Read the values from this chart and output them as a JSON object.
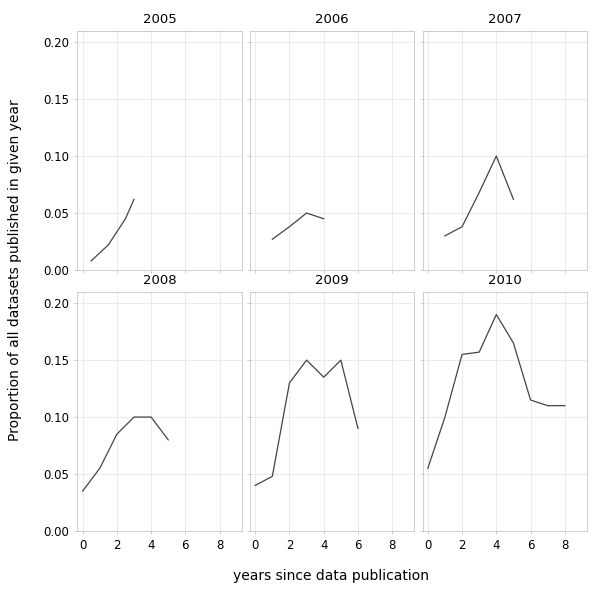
{
  "panels": [
    {
      "year": "2005",
      "x": [
        0.5,
        1.5,
        2.5,
        3.0
      ],
      "y": [
        0.008,
        0.022,
        0.045,
        0.062
      ]
    },
    {
      "year": "2006",
      "x": [
        1.0,
        2.0,
        3.0,
        4.0
      ],
      "y": [
        0.027,
        0.038,
        0.05,
        0.045
      ]
    },
    {
      "year": "2007",
      "x": [
        1.0,
        2.0,
        3.0,
        4.0,
        5.0
      ],
      "y": [
        0.03,
        0.038,
        0.068,
        0.1,
        0.062
      ]
    },
    {
      "year": "2008",
      "x": [
        0.0,
        1.0,
        2.0,
        3.0,
        4.0,
        5.0
      ],
      "y": [
        0.035,
        0.055,
        0.085,
        0.1,
        0.1,
        0.08
      ]
    },
    {
      "year": "2009",
      "x": [
        0.0,
        1.0,
        2.0,
        3.0,
        4.0,
        5.0,
        6.0
      ],
      "y": [
        0.04,
        0.048,
        0.13,
        0.15,
        0.135,
        0.15,
        0.09
      ]
    },
    {
      "year": "2010",
      "x": [
        0.0,
        1.0,
        2.0,
        3.0,
        4.0,
        5.0,
        6.0,
        7.0,
        8.0
      ],
      "y": [
        0.055,
        0.1,
        0.155,
        0.157,
        0.19,
        0.165,
        0.115,
        0.11,
        0.11
      ]
    }
  ],
  "ylim": [
    0.0,
    0.21
  ],
  "yticks": [
    0.0,
    0.05,
    0.1,
    0.15,
    0.2
  ],
  "ytick_labels": [
    "0.00",
    "0.05",
    "0.10",
    "0.15",
    "0.20"
  ],
  "xlim": [
    -0.3,
    9.3
  ],
  "xticks": [
    0,
    2,
    4,
    6,
    8
  ],
  "xtick_labels": [
    "0",
    "2",
    "4",
    "6",
    "8"
  ],
  "xlabel": "years since data publication",
  "ylabel": "Proportion of all datasets published in given year",
  "line_color": "#444444",
  "strip_bg_color": "#d3d3d3",
  "panel_bg_color": "#ffffff",
  "grid_color": "#e8e8e8",
  "strip_text_color": "#000000",
  "strip_fontsize": 9.5,
  "axis_label_fontsize": 10,
  "tick_fontsize": 8.5,
  "line_width": 0.9
}
